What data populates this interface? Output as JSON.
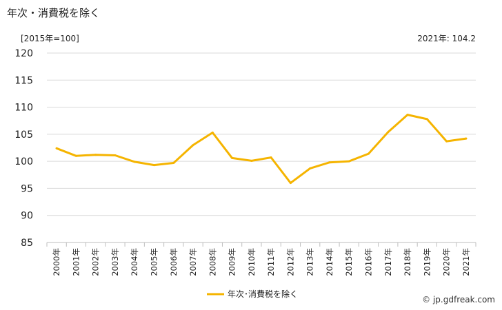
{
  "page": {
    "title": "年次・消費税を除く",
    "unit_label": "[2015年=100]",
    "latest_label": "2021年: 104.2",
    "credit": "© jp.gdfreak.com"
  },
  "chart_data": {
    "type": "line",
    "x": [
      "2000年",
      "2001年",
      "2002年",
      "2003年",
      "2004年",
      "2005年",
      "2006年",
      "2007年",
      "2008年",
      "2009年",
      "2010年",
      "2011年",
      "2012年",
      "2013年",
      "2014年",
      "2015年",
      "2016年",
      "2017年",
      "2018年",
      "2019年",
      "2020年",
      "2021年"
    ],
    "series": [
      {
        "name": "年次･消費税を除く",
        "values": [
          102.4,
          101.0,
          101.2,
          101.1,
          99.9,
          99.3,
          99.7,
          103.0,
          105.3,
          100.6,
          100.1,
          100.7,
          96.0,
          98.7,
          99.8,
          100.0,
          101.4,
          105.4,
          108.6,
          107.8,
          103.7,
          104.2
        ],
        "color": "#f5b400"
      }
    ],
    "yticks": [
      85,
      90,
      95,
      100,
      105,
      110,
      115,
      120
    ],
    "ylim": [
      85,
      120
    ],
    "grid": true,
    "legend_position": "bottom"
  }
}
